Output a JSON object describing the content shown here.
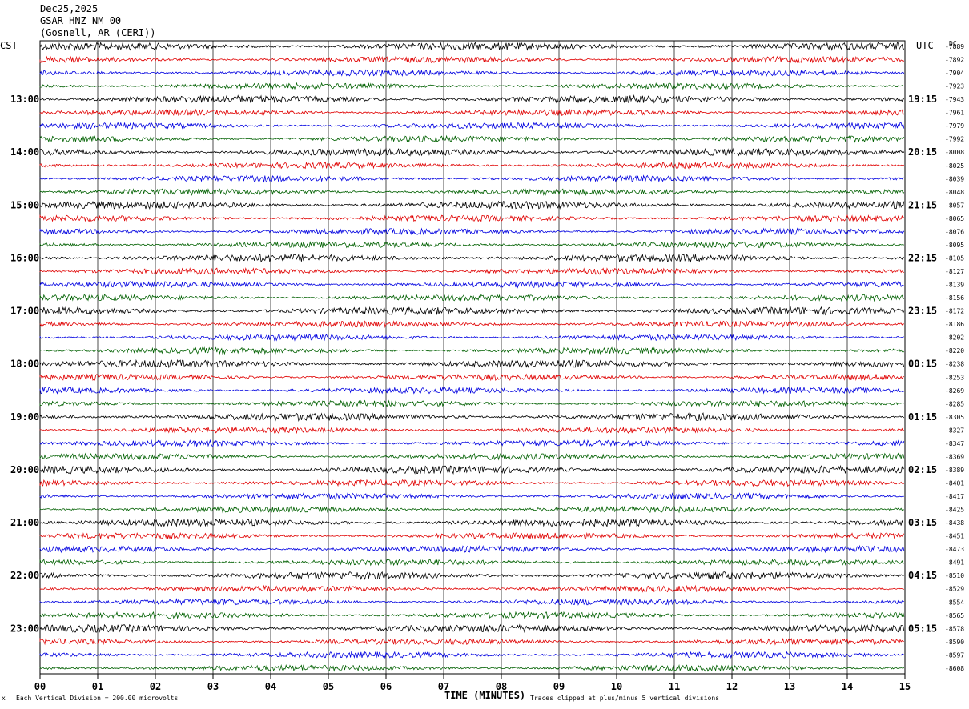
{
  "header": {
    "date": "Dec25,2025",
    "station": "GSAR HNZ NM 00",
    "location": "(Gosnell, AR (CERI))"
  },
  "left_timezone": "CST",
  "right_timezone": "UTC",
  "dc_header": "DC",
  "footer": {
    "scale_note": "Each Vertical Division =  200.00 microvolts",
    "axis_title": "TIME (MINUTES)",
    "clip_note": "Traces clipped at plus/minus 5 vertical divisions"
  },
  "colors": {
    "trace_cycle": [
      "#000000",
      "#e00000",
      "#0000e0",
      "#006000"
    ],
    "grid": "#000000"
  },
  "chart_data": {
    "type": "line",
    "description_kind": "helicorder seismogram",
    "xlabel": "TIME (MINUTES)",
    "x_ticks": [
      "00",
      "01",
      "02",
      "03",
      "04",
      "05",
      "06",
      "07",
      "08",
      "09",
      "10",
      "11",
      "12",
      "13",
      "14",
      "15"
    ],
    "xlim": [
      0,
      15
    ],
    "left_hour_labels": [
      "13:00",
      "14:00",
      "15:00",
      "16:00",
      "17:00",
      "18:00",
      "19:00",
      "20:00",
      "21:00",
      "22:00",
      "23:00"
    ],
    "right_hour_labels": [
      "19:15",
      "20:15",
      "21:15",
      "22:15",
      "23:15",
      "00:15",
      "01:15",
      "02:15",
      "03:15",
      "04:15",
      "05:15"
    ],
    "dc_values": [
      "-7889",
      "-7892",
      "-7904",
      "-7923",
      "-7943",
      "-7961",
      "-7979",
      "-7992",
      "-8008",
      "-8025",
      "-8039",
      "-8048",
      "-8057",
      "-8065",
      "-8076",
      "-8095",
      "-8105",
      "-8127",
      "-8139",
      "-8156",
      "-8172",
      "-8186",
      "-8202",
      "-8220",
      "-8238",
      "-8253",
      "-8269",
      "-8285",
      "-8305",
      "-8327",
      "-8347",
      "-8369",
      "-8389",
      "-8401",
      "-8417",
      "-8425",
      "-8438",
      "-8451",
      "-8473",
      "-8491",
      "-8510",
      "-8529",
      "-8554",
      "-8565",
      "-8578",
      "-8590",
      "-8597",
      "-8608"
    ],
    "grid": true
  }
}
